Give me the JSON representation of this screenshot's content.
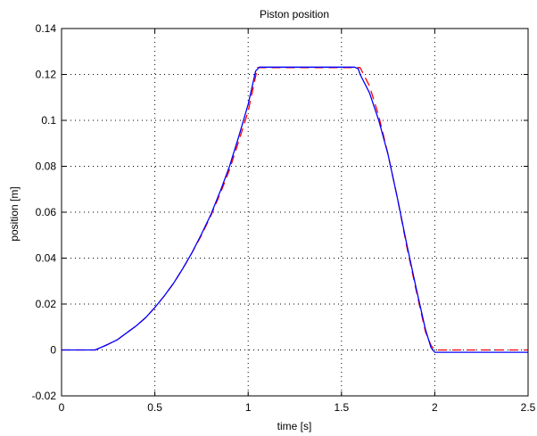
{
  "chart_data": {
    "type": "line",
    "title": "Piston position",
    "xlabel": "time [s]",
    "ylabel": "position [m]",
    "xlim": [
      0,
      2.5
    ],
    "ylim": [
      -0.02,
      0.14
    ],
    "xticks": [
      0,
      0.5,
      1,
      1.5,
      2,
      2.5
    ],
    "xtick_labels": [
      "0",
      "0.5",
      "1",
      "1.5",
      "2",
      "2.5"
    ],
    "yticks": [
      -0.02,
      0,
      0.02,
      0.04,
      0.06,
      0.08,
      0.1,
      0.12,
      0.14
    ],
    "ytick_labels": [
      "-0.02",
      "0",
      "0.02",
      "0.04",
      "0.06",
      "0.08",
      "0.1",
      "0.12",
      "0.14"
    ],
    "grid": true,
    "series": [
      {
        "style": "dashed",
        "color": "#ff0000",
        "x": [
          0,
          0.18,
          0.25,
          0.3,
          0.35,
          0.4,
          0.45,
          0.5,
          0.55,
          0.6,
          0.65,
          0.7,
          0.75,
          0.8,
          0.85,
          0.9,
          0.95,
          1.0,
          1.05,
          1.1,
          1.2,
          1.3,
          1.4,
          1.5,
          1.57,
          1.6,
          1.65,
          1.7,
          1.75,
          1.8,
          1.85,
          1.9,
          1.95,
          1.98,
          2.0,
          2.05,
          2.5
        ],
        "y": [
          0,
          0,
          0.0025,
          0.0045,
          0.0075,
          0.0105,
          0.014,
          0.0185,
          0.0235,
          0.029,
          0.0355,
          0.0425,
          0.05,
          0.0585,
          0.068,
          0.0785,
          0.091,
          0.104,
          0.123,
          0.123,
          0.123,
          0.123,
          0.123,
          0.123,
          0.123,
          0.123,
          0.115,
          0.102,
          0.085,
          0.066,
          0.045,
          0.026,
          0.008,
          0.002,
          0,
          0,
          0
        ]
      },
      {
        "style": "solid",
        "color": "#0000ff",
        "x": [
          0,
          0.18,
          0.25,
          0.3,
          0.35,
          0.4,
          0.45,
          0.5,
          0.55,
          0.6,
          0.65,
          0.7,
          0.75,
          0.8,
          0.85,
          0.9,
          0.95,
          1.0,
          1.04,
          1.06,
          1.1,
          1.2,
          1.3,
          1.4,
          1.5,
          1.57,
          1.59,
          1.6,
          1.65,
          1.7,
          1.75,
          1.8,
          1.85,
          1.9,
          1.95,
          1.98,
          2.0,
          2.05,
          2.5
        ],
        "y": [
          0,
          0,
          0.0025,
          0.0045,
          0.0075,
          0.0105,
          0.014,
          0.0185,
          0.0235,
          0.029,
          0.0355,
          0.0425,
          0.0505,
          0.059,
          0.069,
          0.08,
          0.093,
          0.107,
          0.1215,
          0.1232,
          0.1232,
          0.1232,
          0.1232,
          0.1232,
          0.1232,
          0.1232,
          0.1225,
          0.12,
          0.112,
          0.1,
          0.085,
          0.066,
          0.046,
          0.027,
          0.009,
          0.001,
          -0.001,
          -0.001,
          -0.001
        ]
      }
    ]
  }
}
